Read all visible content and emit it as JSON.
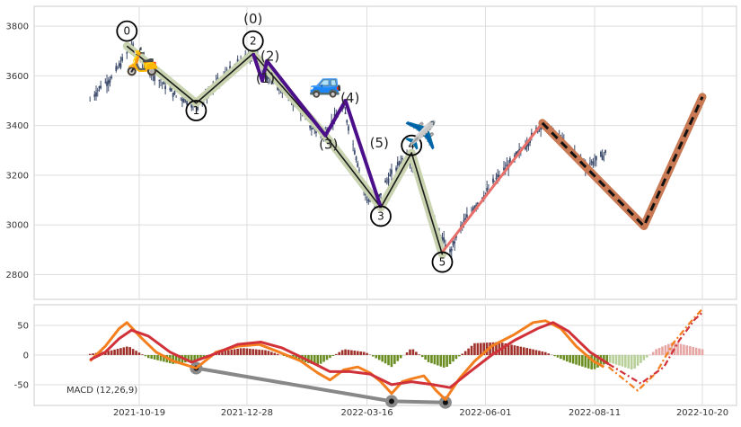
{
  "chart_data": [
    {
      "type": "line",
      "panel": "price",
      "ylim": [
        2700,
        3880
      ],
      "yticks": [
        2800,
        3000,
        3200,
        3400,
        3600,
        3800
      ],
      "xticks": [
        "2021-10-19",
        "2021-12-28",
        "2022-03-16",
        "2022-06-01",
        "2022-08-11",
        "2022-10-20"
      ],
      "grid": true,
      "price_path": [
        {
          "x": "2021-09-17",
          "y": 3500
        },
        {
          "x": "2021-09-24",
          "y": 3560
        },
        {
          "x": "2021-10-01",
          "y": 3590
        },
        {
          "x": "2021-10-08",
          "y": 3660
        },
        {
          "x": "2021-10-14",
          "y": 3720
        },
        {
          "x": "2021-10-22",
          "y": 3650
        },
        {
          "x": "2021-10-29",
          "y": 3600
        },
        {
          "x": "2021-11-05",
          "y": 3560
        },
        {
          "x": "2021-11-12",
          "y": 3520
        },
        {
          "x": "2021-11-19",
          "y": 3500
        },
        {
          "x": "2021-11-26",
          "y": 3480
        },
        {
          "x": "2021-12-03",
          "y": 3530
        },
        {
          "x": "2021-12-10",
          "y": 3580
        },
        {
          "x": "2021-12-17",
          "y": 3620
        },
        {
          "x": "2021-12-24",
          "y": 3660
        },
        {
          "x": "2022-01-03",
          "y": 3690
        },
        {
          "x": "2022-01-10",
          "y": 3600
        },
        {
          "x": "2022-01-17",
          "y": 3560
        },
        {
          "x": "2022-01-24",
          "y": 3520
        },
        {
          "x": "2022-02-01",
          "y": 3460
        },
        {
          "x": "2022-02-08",
          "y": 3390
        },
        {
          "x": "2022-02-15",
          "y": 3360
        },
        {
          "x": "2022-02-22",
          "y": 3420
        },
        {
          "x": "2022-03-01",
          "y": 3470
        },
        {
          "x": "2022-03-08",
          "y": 3300
        },
        {
          "x": "2022-03-15",
          "y": 3120
        },
        {
          "x": "2022-03-21",
          "y": 3070
        },
        {
          "x": "2022-03-28",
          "y": 3170
        },
        {
          "x": "2022-04-04",
          "y": 3230
        },
        {
          "x": "2022-04-11",
          "y": 3290
        },
        {
          "x": "2022-04-18",
          "y": 3200
        },
        {
          "x": "2022-04-25",
          "y": 3080
        },
        {
          "x": "2022-05-02",
          "y": 2960
        },
        {
          "x": "2022-05-09",
          "y": 2890
        },
        {
          "x": "2022-05-16",
          "y": 2990
        },
        {
          "x": "2022-05-23",
          "y": 3060
        },
        {
          "x": "2022-05-30",
          "y": 3110
        },
        {
          "x": "2022-06-06",
          "y": 3170
        },
        {
          "x": "2022-06-13",
          "y": 3220
        },
        {
          "x": "2022-06-20",
          "y": 3270
        },
        {
          "x": "2022-06-27",
          "y": 3320
        },
        {
          "x": "2022-07-04",
          "y": 3380
        },
        {
          "x": "2022-07-08",
          "y": 3410
        },
        {
          "x": "2022-07-15",
          "y": 3370
        },
        {
          "x": "2022-07-22",
          "y": 3330
        },
        {
          "x": "2022-07-29",
          "y": 3290
        },
        {
          "x": "2022-08-05",
          "y": 3240
        },
        {
          "x": "2022-08-12",
          "y": 3260
        },
        {
          "x": "2022-08-18",
          "y": 3290
        }
      ],
      "wave_labels": [
        {
          "text": "0",
          "x": "2021-10-11",
          "y": 3780,
          "circled": true
        },
        {
          "text": "1",
          "x": "2021-11-25",
          "y": 3460,
          "circled": true
        },
        {
          "text": "2",
          "x": "2022-01-01",
          "y": 3740,
          "circled": true
        },
        {
          "text": "3",
          "x": "2022-03-25",
          "y": 3035,
          "circled": true
        },
        {
          "text": "4",
          "x": "2022-04-14",
          "y": 3320,
          "circled": true
        },
        {
          "text": "5",
          "x": "2022-05-04",
          "y": 2850,
          "circled": true
        },
        {
          "text": "(0)",
          "x": "2022-01-01",
          "y": 3830,
          "circled": false
        },
        {
          "text": "(1)",
          "x": "2022-01-09",
          "y": 3590,
          "circled": false
        },
        {
          "text": "(2)",
          "x": "2022-01-12",
          "y": 3680,
          "circled": false
        },
        {
          "text": "(3)",
          "x": "2022-02-19",
          "y": 3325,
          "circled": false
        },
        {
          "text": "(4)",
          "x": "2022-03-05",
          "y": 3510,
          "circled": false
        },
        {
          "text": "(5)",
          "x": "2022-03-24",
          "y": 3330,
          "circled": false
        }
      ],
      "main_wave": [
        {
          "x": "2021-10-11",
          "y": 3720
        },
        {
          "x": "2021-11-25",
          "y": 3490
        },
        {
          "x": "2022-01-01",
          "y": 3690
        },
        {
          "x": "2022-02-17",
          "y": 3360
        },
        {
          "x": "2022-03-25",
          "y": 3070
        },
        {
          "x": "2022-04-14",
          "y": 3290
        },
        {
          "x": "2022-05-04",
          "y": 2880
        }
      ],
      "sub_wave": [
        {
          "x": "2022-01-01",
          "y": 3690
        },
        {
          "x": "2022-01-07",
          "y": 3580
        },
        {
          "x": "2022-01-10",
          "y": 3660
        },
        {
          "x": "2022-02-17",
          "y": 3360
        },
        {
          "x": "2022-03-02",
          "y": 3500
        },
        {
          "x": "2022-03-25",
          "y": 3070
        }
      ],
      "rally_line": [
        {
          "x": "2022-05-04",
          "y": 2890
        },
        {
          "x": "2022-07-08",
          "y": 3410
        }
      ],
      "projection": [
        {
          "x": "2022-07-08",
          "y": 3410
        },
        {
          "x": "2022-09-12",
          "y": 2995
        },
        {
          "x": "2022-10-20",
          "y": 3515
        }
      ],
      "colors": {
        "candles": "#3b4a6b",
        "main_wave": "#1a1a1a",
        "main_wave_band": "#c9d3b0",
        "sub_wave": "#4b0f8a",
        "rally": "#e8706a",
        "projection_band": "#c97a55",
        "projection_line": "#111111"
      },
      "icons": [
        {
          "name": "scooter-icon",
          "glyph": "🛵",
          "x": "2021-10-21",
          "y": 3660
        },
        {
          "name": "car-icon",
          "glyph": "🚙",
          "x": "2022-02-17",
          "y": 3570
        },
        {
          "name": "airplane-icon",
          "glyph": "✈️",
          "x": "2022-04-20",
          "y": 3360
        }
      ]
    },
    {
      "type": "bar",
      "panel": "macd",
      "label": "MACD (12,26,9)",
      "ylim": [
        -85,
        85
      ],
      "yticks": [
        -50,
        0,
        50
      ],
      "grid": true,
      "macd_fast": [
        {
          "x": "2021-09-17",
          "y": -10
        },
        {
          "x": "2021-09-27",
          "y": 15
        },
        {
          "x": "2021-10-06",
          "y": 45
        },
        {
          "x": "2021-10-11",
          "y": 55
        },
        {
          "x": "2021-10-20",
          "y": 30
        },
        {
          "x": "2021-10-30",
          "y": 5
        },
        {
          "x": "2021-11-10",
          "y": -10
        },
        {
          "x": "2021-11-25",
          "y": -22
        },
        {
          "x": "2021-12-08",
          "y": 5
        },
        {
          "x": "2021-12-22",
          "y": 15
        },
        {
          "x": "2022-01-05",
          "y": 18
        },
        {
          "x": "2022-01-18",
          "y": 5
        },
        {
          "x": "2022-02-01",
          "y": -10
        },
        {
          "x": "2022-02-12",
          "y": -30
        },
        {
          "x": "2022-02-20",
          "y": -42
        },
        {
          "x": "2022-03-01",
          "y": -25
        },
        {
          "x": "2022-03-10",
          "y": -20
        },
        {
          "x": "2022-03-18",
          "y": -30
        },
        {
          "x": "2022-03-25",
          "y": -45
        },
        {
          "x": "2022-04-01",
          "y": -65
        },
        {
          "x": "2022-04-08",
          "y": -45
        },
        {
          "x": "2022-04-14",
          "y": -40
        },
        {
          "x": "2022-04-22",
          "y": -35
        },
        {
          "x": "2022-04-30",
          "y": -60
        },
        {
          "x": "2022-05-06",
          "y": -75
        },
        {
          "x": "2022-05-15",
          "y": -40
        },
        {
          "x": "2022-05-25",
          "y": -10
        },
        {
          "x": "2022-06-05",
          "y": 15
        },
        {
          "x": "2022-06-20",
          "y": 35
        },
        {
          "x": "2022-07-02",
          "y": 55
        },
        {
          "x": "2022-07-10",
          "y": 58
        },
        {
          "x": "2022-07-20",
          "y": 45
        },
        {
          "x": "2022-07-30",
          "y": 15
        },
        {
          "x": "2022-08-10",
          "y": -10
        },
        {
          "x": "2022-08-17",
          "y": -20
        }
      ],
      "macd_signal": [
        {
          "x": "2021-09-17",
          "y": -8
        },
        {
          "x": "2021-09-27",
          "y": 5
        },
        {
          "x": "2021-10-06",
          "y": 28
        },
        {
          "x": "2021-10-14",
          "y": 42
        },
        {
          "x": "2021-10-25",
          "y": 32
        },
        {
          "x": "2021-11-08",
          "y": 5
        },
        {
          "x": "2021-11-22",
          "y": -12
        },
        {
          "x": "2021-12-05",
          "y": 0
        },
        {
          "x": "2021-12-22",
          "y": 18
        },
        {
          "x": "2022-01-06",
          "y": 22
        },
        {
          "x": "2022-01-20",
          "y": 12
        },
        {
          "x": "2022-02-05",
          "y": -8
        },
        {
          "x": "2022-02-20",
          "y": -28
        },
        {
          "x": "2022-03-05",
          "y": -28
        },
        {
          "x": "2022-03-18",
          "y": -32
        },
        {
          "x": "2022-04-01",
          "y": -50
        },
        {
          "x": "2022-04-14",
          "y": -45
        },
        {
          "x": "2022-04-28",
          "y": -50
        },
        {
          "x": "2022-05-09",
          "y": -55
        },
        {
          "x": "2022-05-22",
          "y": -28
        },
        {
          "x": "2022-06-05",
          "y": 0
        },
        {
          "x": "2022-06-20",
          "y": 25
        },
        {
          "x": "2022-07-05",
          "y": 45
        },
        {
          "x": "2022-07-15",
          "y": 55
        },
        {
          "x": "2022-07-25",
          "y": 40
        },
        {
          "x": "2022-08-08",
          "y": 5
        },
        {
          "x": "2022-08-20",
          "y": -15
        }
      ],
      "proj_fast": [
        {
          "x": "2022-08-20",
          "y": -20
        },
        {
          "x": "2022-09-08",
          "y": -60
        },
        {
          "x": "2022-09-20",
          "y": -30
        },
        {
          "x": "2022-10-01",
          "y": 20
        },
        {
          "x": "2022-10-12",
          "y": 55
        },
        {
          "x": "2022-10-20",
          "y": 78
        }
      ],
      "proj_signal": [
        {
          "x": "2022-08-20",
          "y": -15
        },
        {
          "x": "2022-09-10",
          "y": -48
        },
        {
          "x": "2022-09-25",
          "y": -20
        },
        {
          "x": "2022-10-05",
          "y": 25
        },
        {
          "x": "2022-10-15",
          "y": 60
        },
        {
          "x": "2022-10-20",
          "y": 72
        }
      ],
      "hist_anchors": [
        {
          "x": "2021-09-17",
          "y": 2
        },
        {
          "x": "2021-10-01",
          "y": 8
        },
        {
          "x": "2021-10-12",
          "y": 15
        },
        {
          "x": "2021-10-25",
          "y": -5
        },
        {
          "x": "2021-11-10",
          "y": -15
        },
        {
          "x": "2021-11-25",
          "y": -10
        },
        {
          "x": "2021-12-08",
          "y": 5
        },
        {
          "x": "2021-12-25",
          "y": 12
        },
        {
          "x": "2022-01-10",
          "y": 8
        },
        {
          "x": "2022-01-25",
          "y": -5
        },
        {
          "x": "2022-02-12",
          "y": -18
        },
        {
          "x": "2022-03-01",
          "y": 10
        },
        {
          "x": "2022-03-15",
          "y": 5
        },
        {
          "x": "2022-04-01",
          "y": -20
        },
        {
          "x": "2022-04-14",
          "y": 12
        },
        {
          "x": "2022-04-25",
          "y": -12
        },
        {
          "x": "2022-05-06",
          "y": -22
        },
        {
          "x": "2022-05-25",
          "y": 20
        },
        {
          "x": "2022-06-10",
          "y": 22
        },
        {
          "x": "2022-06-28",
          "y": 12
        },
        {
          "x": "2022-07-10",
          "y": 5
        },
        {
          "x": "2022-07-25",
          "y": -12
        },
        {
          "x": "2022-08-10",
          "y": -25
        },
        {
          "x": "2022-08-20",
          "y": -12
        },
        {
          "x": "2022-09-05",
          "y": -25
        },
        {
          "x": "2022-09-20",
          "y": 10
        },
        {
          "x": "2022-10-01",
          "y": 22
        },
        {
          "x": "2022-10-20",
          "y": 10
        }
      ],
      "divergence": [
        {
          "x": "2021-11-25",
          "y": -22
        },
        {
          "x": "2022-04-01",
          "y": -78
        },
        {
          "x": "2022-05-06",
          "y": -80
        }
      ],
      "colors": {
        "fast": "#f47f1e",
        "signal": "#d1323a",
        "hist_pos": "#a0312b",
        "hist_neg": "#6b8e23",
        "hist_pos_proj": "#e6a6a3",
        "hist_neg_proj": "#b7cf98",
        "divergence": "#888888"
      }
    }
  ]
}
